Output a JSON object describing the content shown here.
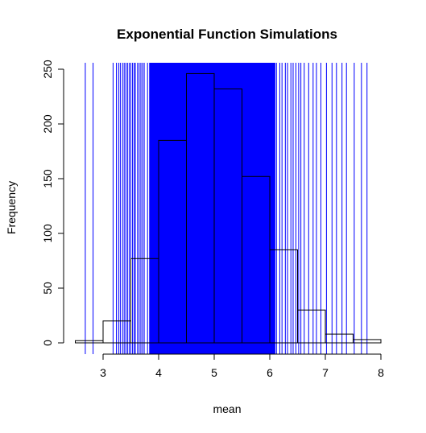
{
  "chart_data": {
    "type": "bar",
    "title": "Exponential Function Simulations",
    "xlabel": "mean",
    "ylabel": "Frequency",
    "xlim": [
      2.5,
      8.0
    ],
    "ylim": [
      0,
      250
    ],
    "xticks": [
      "3",
      "4",
      "5",
      "6",
      "7",
      "8"
    ],
    "yticks": [
      "0",
      "50",
      "100",
      "150",
      "200",
      "250"
    ],
    "bins": [
      {
        "start": 2.5,
        "end": 3.0,
        "count": 2
      },
      {
        "start": 3.0,
        "end": 3.5,
        "count": 20
      },
      {
        "start": 3.5,
        "end": 4.0,
        "count": 77
      },
      {
        "start": 4.0,
        "end": 4.5,
        "count": 185
      },
      {
        "start": 4.5,
        "end": 5.0,
        "count": 246
      },
      {
        "start": 5.0,
        "end": 5.5,
        "count": 232
      },
      {
        "start": 5.5,
        "end": 6.0,
        "count": 152
      },
      {
        "start": 6.0,
        "end": 6.5,
        "count": 85
      },
      {
        "start": 6.5,
        "end": 7.0,
        "count": 30
      },
      {
        "start": 7.0,
        "end": 7.5,
        "count": 8
      },
      {
        "start": 7.5,
        "end": 8.0,
        "count": 3
      }
    ],
    "vlines": {
      "color": "#0000ff",
      "positions": [
        2.68,
        2.82,
        3.18,
        3.24,
        3.28,
        3.31,
        3.35,
        3.38,
        3.41,
        3.44,
        3.47,
        3.5,
        3.53,
        3.56,
        3.58,
        3.62,
        3.65,
        3.68,
        3.71,
        3.74,
        3.8,
        6.12,
        6.18,
        6.22,
        6.28,
        6.32,
        6.38,
        6.42,
        6.47,
        6.52,
        6.56,
        6.62,
        6.7,
        6.78,
        6.84,
        6.92,
        7.02,
        7.12,
        7.2,
        7.3,
        7.38,
        7.52,
        7.65,
        7.75
      ],
      "dense_band": [
        3.83,
        6.1
      ]
    },
    "grid": false
  }
}
